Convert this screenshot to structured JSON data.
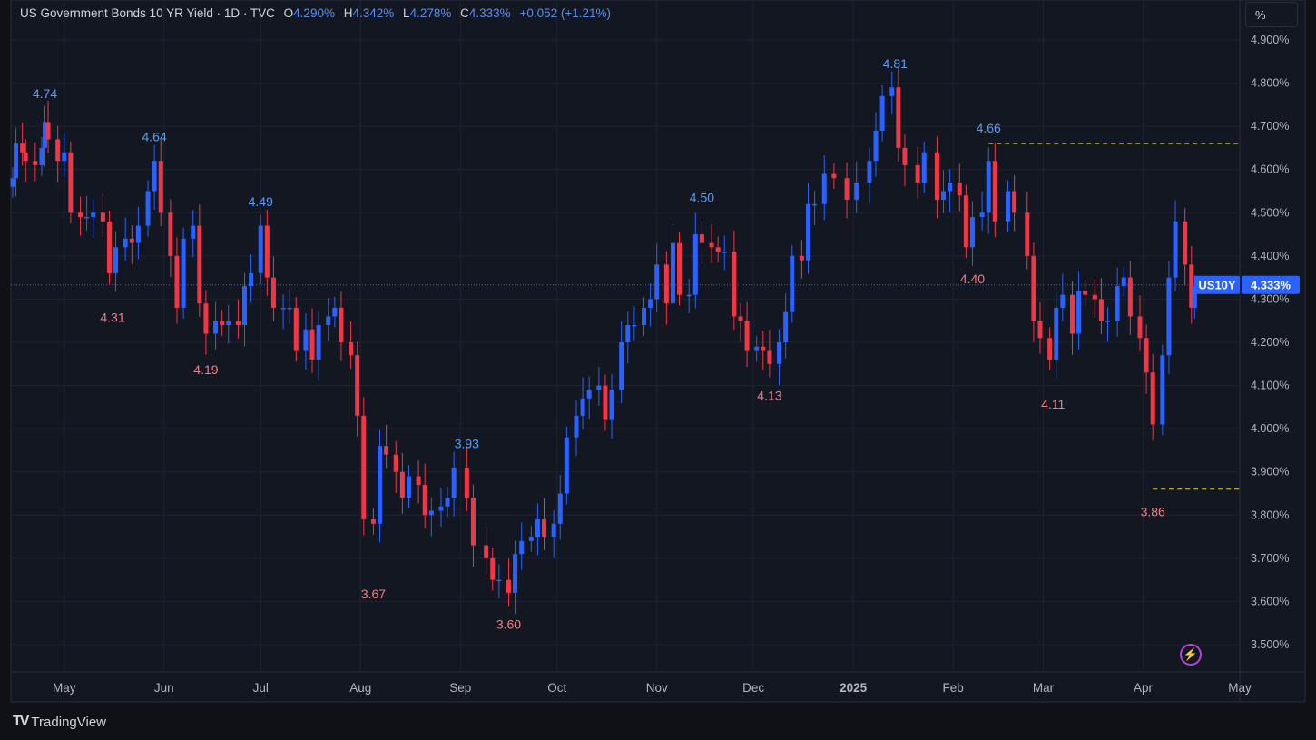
{
  "legend": {
    "title": "US Government Bonds 10 YR Yield · 1D · TVC",
    "o_label": "O",
    "o_value": "4.290%",
    "h_label": "H",
    "h_value": "4.342%",
    "l_label": "L",
    "l_value": "4.278%",
    "c_label": "C",
    "c_value": "4.333%",
    "change": "+0.052 (+1.21%)"
  },
  "unit_button": "%",
  "brand": "TradingView",
  "colors": {
    "up": "#2962ff",
    "down": "#f23645",
    "bg": "#131722",
    "grid": "#1f2330",
    "dashed": "#e7d24a"
  },
  "chart_data": {
    "type": "candlestick",
    "symbol_tag": "US10Y",
    "last_value": "4.333%",
    "ylim": [
      3.5,
      4.9
    ],
    "yticks": [
      "4.900%",
      "4.800%",
      "4.700%",
      "4.600%",
      "4.500%",
      "4.400%",
      "4.300%",
      "4.200%",
      "4.100%",
      "4.000%",
      "3.900%",
      "3.800%",
      "3.700%",
      "3.600%",
      "3.500%"
    ],
    "xticks": [
      "May",
      "Jun",
      "Jul",
      "Aug",
      "Sep",
      "Oct",
      "Nov",
      "Dec",
      "2025",
      "Feb",
      "Mar",
      "Apr",
      "May"
    ],
    "annotations": [
      {
        "label": "4.74",
        "date": "2024-04-25",
        "value": 4.74,
        "kind": "high"
      },
      {
        "label": "4.64",
        "date": "2024-05-29",
        "value": 4.64,
        "kind": "high"
      },
      {
        "label": "4.31",
        "date": "2024-05-16",
        "value": 4.31,
        "kind": "low"
      },
      {
        "label": "4.49",
        "date": "2024-07-01",
        "value": 4.49,
        "kind": "high"
      },
      {
        "label": "4.19",
        "date": "2024-06-14",
        "value": 4.19,
        "kind": "low"
      },
      {
        "label": "3.67",
        "date": "2024-08-05",
        "value": 3.67,
        "kind": "low"
      },
      {
        "label": "3.93",
        "date": "2024-09-03",
        "value": 3.93,
        "kind": "high"
      },
      {
        "label": "3.60",
        "date": "2024-09-16",
        "value": 3.6,
        "kind": "low"
      },
      {
        "label": "4.50",
        "date": "2024-11-15",
        "value": 4.5,
        "kind": "high"
      },
      {
        "label": "4.13",
        "date": "2024-12-06",
        "value": 4.13,
        "kind": "low"
      },
      {
        "label": "4.81",
        "date": "2025-01-14",
        "value": 4.81,
        "kind": "high"
      },
      {
        "label": "4.66",
        "date": "2025-02-12",
        "value": 4.66,
        "kind": "high"
      },
      {
        "label": "4.40",
        "date": "2025-02-07",
        "value": 4.4,
        "kind": "low"
      },
      {
        "label": "4.11",
        "date": "2025-03-04",
        "value": 4.11,
        "kind": "low"
      },
      {
        "label": "3.86",
        "date": "2025-04-04",
        "value": 3.86,
        "kind": "low"
      }
    ],
    "dashed_levels": [
      {
        "value": 4.66,
        "from": "2025-02-12"
      },
      {
        "value": 3.86,
        "from": "2025-04-04"
      }
    ],
    "ohlc_points": [
      [
        "2024-04-15",
        4.58
      ],
      [
        "2024-04-16",
        4.66
      ],
      [
        "2024-04-18",
        4.64
      ],
      [
        "2024-04-19",
        4.62
      ],
      [
        "2024-04-22",
        4.61
      ],
      [
        "2024-04-24",
        4.65
      ],
      [
        "2024-04-25",
        4.71
      ],
      [
        "2024-04-26",
        4.67
      ],
      [
        "2024-04-29",
        4.62
      ],
      [
        "2024-05-01",
        4.64
      ],
      [
        "2024-05-03",
        4.5
      ],
      [
        "2024-05-06",
        4.49
      ],
      [
        "2024-05-08",
        4.49
      ],
      [
        "2024-05-10",
        4.5
      ],
      [
        "2024-05-13",
        4.48
      ],
      [
        "2024-05-15",
        4.36
      ],
      [
        "2024-05-17",
        4.42
      ],
      [
        "2024-05-20",
        4.44
      ],
      [
        "2024-05-22",
        4.43
      ],
      [
        "2024-05-24",
        4.47
      ],
      [
        "2024-05-27",
        4.55
      ],
      [
        "2024-05-29",
        4.62
      ],
      [
        "2024-05-31",
        4.5
      ],
      [
        "2024-06-03",
        4.4
      ],
      [
        "2024-06-05",
        4.28
      ],
      [
        "2024-06-07",
        4.44
      ],
      [
        "2024-06-10",
        4.47
      ],
      [
        "2024-06-12",
        4.29
      ],
      [
        "2024-06-14",
        4.22
      ],
      [
        "2024-06-17",
        4.25
      ],
      [
        "2024-06-19",
        4.24
      ],
      [
        "2024-06-21",
        4.25
      ],
      [
        "2024-06-24",
        4.24
      ],
      [
        "2024-06-26",
        4.33
      ],
      [
        "2024-06-28",
        4.36
      ],
      [
        "2024-07-01",
        4.47
      ],
      [
        "2024-07-03",
        4.35
      ],
      [
        "2024-07-05",
        4.28
      ],
      [
        "2024-07-08",
        4.28
      ],
      [
        "2024-07-10",
        4.28
      ],
      [
        "2024-07-12",
        4.18
      ],
      [
        "2024-07-15",
        4.23
      ],
      [
        "2024-07-17",
        4.16
      ],
      [
        "2024-07-19",
        4.24
      ],
      [
        "2024-07-22",
        4.26
      ],
      [
        "2024-07-24",
        4.28
      ],
      [
        "2024-07-26",
        4.2
      ],
      [
        "2024-07-29",
        4.17
      ],
      [
        "2024-07-31",
        4.03
      ],
      [
        "2024-08-02",
        3.79
      ],
      [
        "2024-08-05",
        3.78
      ],
      [
        "2024-08-07",
        3.96
      ],
      [
        "2024-08-09",
        3.94
      ],
      [
        "2024-08-12",
        3.9
      ],
      [
        "2024-08-14",
        3.84
      ],
      [
        "2024-08-16",
        3.89
      ],
      [
        "2024-08-19",
        3.87
      ],
      [
        "2024-08-21",
        3.8
      ],
      [
        "2024-08-23",
        3.81
      ],
      [
        "2024-08-26",
        3.82
      ],
      [
        "2024-08-28",
        3.84
      ],
      [
        "2024-08-30",
        3.91
      ],
      [
        "2024-09-03",
        3.84
      ],
      [
        "2024-09-05",
        3.73
      ],
      [
        "2024-09-09",
        3.7
      ],
      [
        "2024-09-11",
        3.65
      ],
      [
        "2024-09-13",
        3.65
      ],
      [
        "2024-09-16",
        3.62
      ],
      [
        "2024-09-18",
        3.71
      ],
      [
        "2024-09-20",
        3.74
      ],
      [
        "2024-09-23",
        3.75
      ],
      [
        "2024-09-25",
        3.79
      ],
      [
        "2024-09-27",
        3.75
      ],
      [
        "2024-09-30",
        3.78
      ],
      [
        "2024-10-02",
        3.85
      ],
      [
        "2024-10-04",
        3.98
      ],
      [
        "2024-10-07",
        4.03
      ],
      [
        "2024-10-09",
        4.07
      ],
      [
        "2024-10-11",
        4.09
      ],
      [
        "2024-10-14",
        4.1
      ],
      [
        "2024-10-16",
        4.02
      ],
      [
        "2024-10-18",
        4.09
      ],
      [
        "2024-10-21",
        4.2
      ],
      [
        "2024-10-23",
        4.24
      ],
      [
        "2024-10-25",
        4.24
      ],
      [
        "2024-10-28",
        4.28
      ],
      [
        "2024-10-30",
        4.3
      ],
      [
        "2024-11-01",
        4.38
      ],
      [
        "2024-11-04",
        4.29
      ],
      [
        "2024-11-06",
        4.43
      ],
      [
        "2024-11-08",
        4.31
      ],
      [
        "2024-11-11",
        4.31
      ],
      [
        "2024-11-13",
        4.45
      ],
      [
        "2024-11-15",
        4.43
      ],
      [
        "2024-11-18",
        4.42
      ],
      [
        "2024-11-20",
        4.41
      ],
      [
        "2024-11-22",
        4.41
      ],
      [
        "2024-11-25",
        4.26
      ],
      [
        "2024-11-27",
        4.25
      ],
      [
        "2024-11-29",
        4.18
      ],
      [
        "2024-12-02",
        4.19
      ],
      [
        "2024-12-04",
        4.18
      ],
      [
        "2024-12-06",
        4.15
      ],
      [
        "2024-12-09",
        4.2
      ],
      [
        "2024-12-11",
        4.27
      ],
      [
        "2024-12-13",
        4.4
      ],
      [
        "2024-12-16",
        4.39
      ],
      [
        "2024-12-18",
        4.52
      ],
      [
        "2024-12-20",
        4.52
      ],
      [
        "2024-12-23",
        4.59
      ],
      [
        "2024-12-26",
        4.58
      ],
      [
        "2024-12-30",
        4.53
      ],
      [
        "2025-01-02",
        4.57
      ],
      [
        "2025-01-06",
        4.62
      ],
      [
        "2025-01-08",
        4.69
      ],
      [
        "2025-01-10",
        4.77
      ],
      [
        "2025-01-13",
        4.79
      ],
      [
        "2025-01-15",
        4.65
      ],
      [
        "2025-01-17",
        4.61
      ],
      [
        "2025-01-21",
        4.57
      ],
      [
        "2025-01-23",
        4.64
      ],
      [
        "2025-01-27",
        4.53
      ],
      [
        "2025-01-29",
        4.55
      ],
      [
        "2025-01-31",
        4.57
      ],
      [
        "2025-02-03",
        4.54
      ],
      [
        "2025-02-05",
        4.42
      ],
      [
        "2025-02-07",
        4.49
      ],
      [
        "2025-02-10",
        4.5
      ],
      [
        "2025-02-12",
        4.62
      ],
      [
        "2025-02-14",
        4.48
      ],
      [
        "2025-02-18",
        4.55
      ],
      [
        "2025-02-20",
        4.5
      ],
      [
        "2025-02-24",
        4.4
      ],
      [
        "2025-02-26",
        4.25
      ],
      [
        "2025-02-28",
        4.21
      ],
      [
        "2025-03-03",
        4.16
      ],
      [
        "2025-03-05",
        4.28
      ],
      [
        "2025-03-07",
        4.31
      ],
      [
        "2025-03-10",
        4.22
      ],
      [
        "2025-03-12",
        4.32
      ],
      [
        "2025-03-14",
        4.31
      ],
      [
        "2025-03-17",
        4.3
      ],
      [
        "2025-03-19",
        4.25
      ],
      [
        "2025-03-21",
        4.25
      ],
      [
        "2025-03-24",
        4.33
      ],
      [
        "2025-03-26",
        4.35
      ],
      [
        "2025-03-28",
        4.26
      ],
      [
        "2025-03-31",
        4.21
      ],
      [
        "2025-04-02",
        4.13
      ],
      [
        "2025-04-04",
        4.01
      ],
      [
        "2025-04-07",
        4.17
      ],
      [
        "2025-04-09",
        4.35
      ],
      [
        "2025-04-11",
        4.48
      ],
      [
        "2025-04-14",
        4.38
      ],
      [
        "2025-04-16",
        4.28
      ],
      [
        "2025-04-17",
        4.33
      ]
    ]
  }
}
